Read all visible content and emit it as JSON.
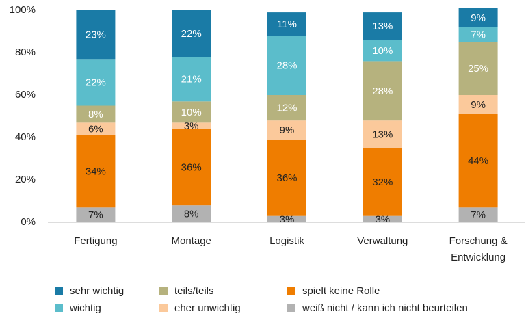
{
  "chart_data": {
    "type": "stacked_bar",
    "categories": [
      "Fertigung",
      "Montage",
      "Logistik",
      "Verwaltung",
      "Forschung &\nEntwicklung"
    ],
    "ylim": [
      0,
      100
    ],
    "yticks": [
      {
        "value": 0,
        "label": "0%"
      },
      {
        "value": 20,
        "label": "20%"
      },
      {
        "value": 40,
        "label": "40%"
      },
      {
        "value": 60,
        "label": "60%"
      },
      {
        "value": 80,
        "label": "80%"
      },
      {
        "value": 100,
        "label": "100%"
      }
    ],
    "series": [
      {
        "name": "weiß nicht / kann ich nicht beurteilen",
        "color": "#b2b2b2",
        "label_color": "#222",
        "values": [
          7,
          8,
          3,
          3,
          7
        ],
        "value_labels": [
          "7%",
          "8%",
          "3%",
          "3%",
          "7%"
        ]
      },
      {
        "name": "spielt keine Rolle",
        "color": "#ef7d00",
        "label_color": "#222",
        "values": [
          34,
          36,
          36,
          32,
          44
        ],
        "value_labels": [
          "34%",
          "36%",
          "36%",
          "32%",
          "44%"
        ]
      },
      {
        "name": "eher unwichtig",
        "color": "#fbc99b",
        "label_color": "#222",
        "values": [
          6,
          3,
          9,
          13,
          9
        ],
        "value_labels": [
          "6%",
          "3%",
          "9%",
          "13%",
          "9%"
        ]
      },
      {
        "name": "teils/teils",
        "color": "#b6b27e",
        "label_color": "#fff",
        "values": [
          8,
          10,
          12,
          28,
          25
        ],
        "value_labels": [
          "8%",
          "10%",
          "12%",
          "28%",
          "25%"
        ]
      },
      {
        "name": "wichtig",
        "color": "#5bbdcb",
        "label_color": "#fff",
        "values": [
          22,
          21,
          28,
          10,
          7
        ],
        "value_labels": [
          "22%",
          "21%",
          "28%",
          "10%",
          "7%"
        ]
      },
      {
        "name": "sehr wichtig",
        "color": "#1a7ba6",
        "label_color": "#fff",
        "values": [
          23,
          22,
          11,
          13,
          9
        ],
        "value_labels": [
          "23%",
          "22%",
          "11%",
          "13%",
          "9%"
        ]
      }
    ],
    "legend_order": [
      5,
      4,
      3,
      2,
      1,
      0
    ]
  }
}
